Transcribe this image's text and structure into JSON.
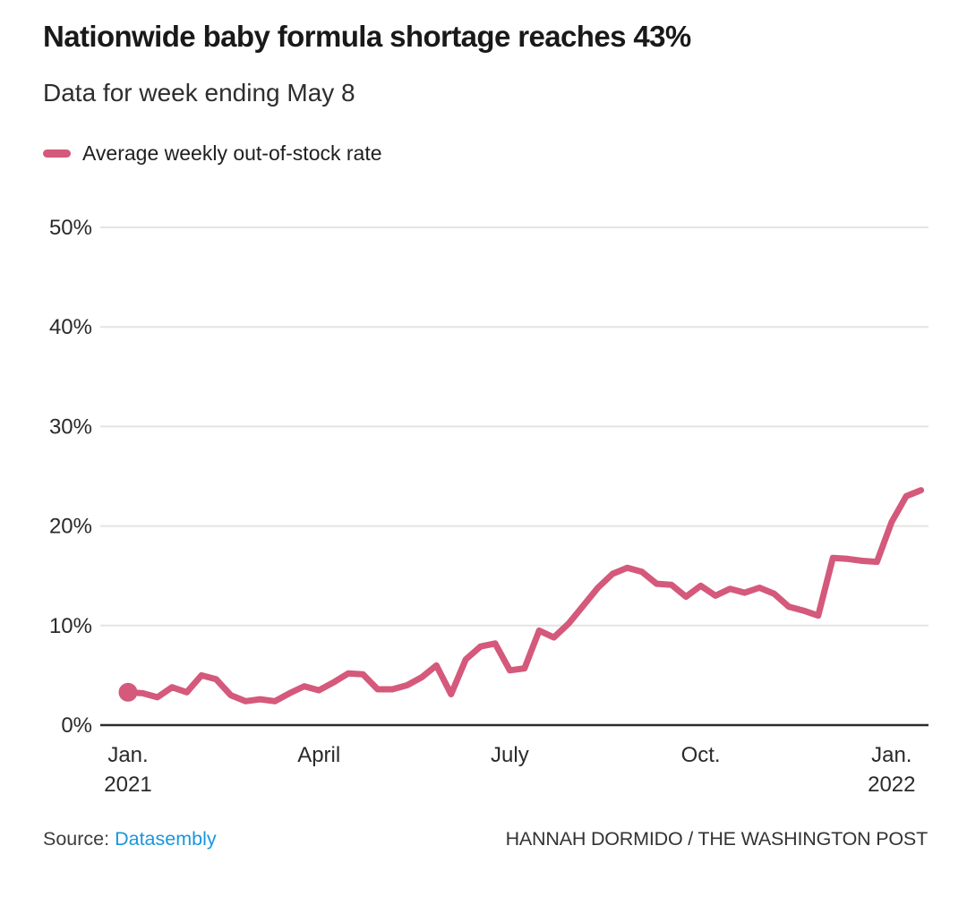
{
  "header": {
    "title": "Nationwide baby formula shortage reaches 43%",
    "subtitle": "Data for week ending May 8"
  },
  "legend": {
    "label": "Average weekly out-of-stock rate"
  },
  "chart_data": {
    "type": "line",
    "title": "Nationwide baby formula shortage reaches 43%",
    "subtitle": "Data for week ending May 8",
    "series_name": "Average weekly out-of-stock rate",
    "unit": "percent",
    "frequency": "weekly",
    "x_range": "Jan. 2021 to late Jan. 2022",
    "ylim": [
      0,
      50
    ],
    "grid": true,
    "line_color": "#d4597b",
    "gridline_color": "#e4e4e4",
    "axis_color": "#2b2b2b",
    "tick_label_color": "#2a2a2a",
    "start_dot": true,
    "y_ticks": [
      {
        "value": 0,
        "label": "0%"
      },
      {
        "value": 10,
        "label": "10%"
      },
      {
        "value": 20,
        "label": "20%"
      },
      {
        "value": 30,
        "label": "30%"
      },
      {
        "value": 40,
        "label": "40%"
      },
      {
        "value": 50,
        "label": "50%"
      }
    ],
    "x_ticks": [
      {
        "week": 0,
        "label": "Jan.",
        "sublabel": "2021"
      },
      {
        "week": 13,
        "label": "April",
        "sublabel": ""
      },
      {
        "week": 26,
        "label": "July",
        "sublabel": ""
      },
      {
        "week": 39,
        "label": "Oct.",
        "sublabel": ""
      },
      {
        "week": 52,
        "label": "Jan.",
        "sublabel": "2022"
      }
    ],
    "values_weekly_pct": [
      3.3,
      3.2,
      2.8,
      3.8,
      3.3,
      5.0,
      4.6,
      3.0,
      2.4,
      2.6,
      2.4,
      3.2,
      3.9,
      3.5,
      4.3,
      5.2,
      5.1,
      3.6,
      3.6,
      4.0,
      4.8,
      6.0,
      3.1,
      6.6,
      7.9,
      8.2,
      5.5,
      5.7,
      9.5,
      8.8,
      10.2,
      12.0,
      13.8,
      15.2,
      15.8,
      15.4,
      14.2,
      14.1,
      12.9,
      14.0,
      13.0,
      13.7,
      13.3,
      13.8,
      13.2,
      11.9,
      11.5,
      11.0,
      16.8,
      16.7,
      16.5,
      16.4,
      20.4,
      23.0,
      23.6
    ]
  },
  "footer": {
    "source_label": "Source:",
    "source_link": "Datasembly",
    "link_color": "#1a96dc",
    "credit": "HANNAH DORMIDO / THE WASHINGTON POST"
  }
}
